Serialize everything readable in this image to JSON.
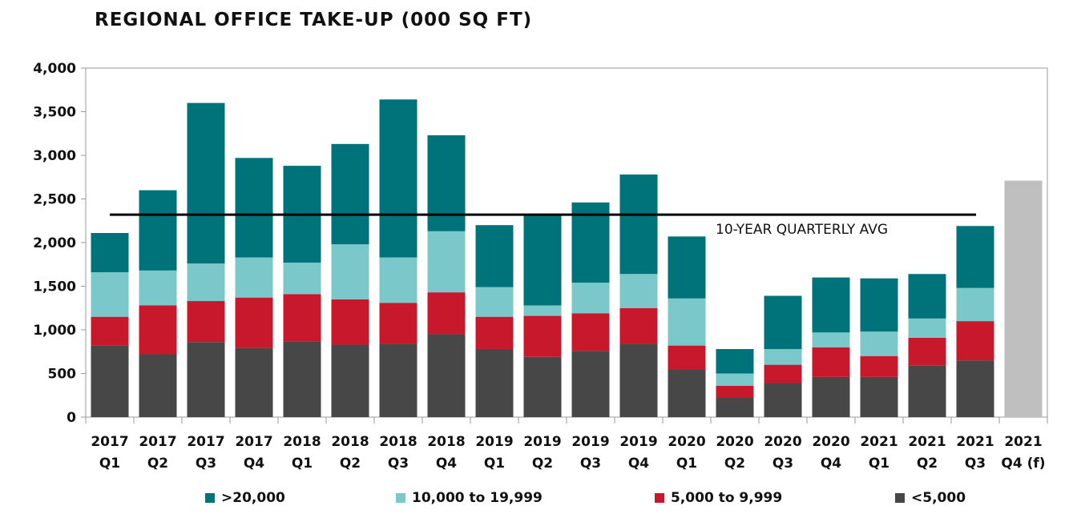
{
  "chart_data": {
    "type": "bar",
    "stacked": true,
    "title": "REGIONAL OFFICE TAKE-UP (000 SQ FT)",
    "xlabel": "",
    "ylabel": "",
    "ylim": [
      0,
      4000
    ],
    "yticks": [
      0,
      500,
      1000,
      1500,
      2000,
      2500,
      3000,
      3500,
      4000
    ],
    "ytick_labels": [
      "0",
      "500",
      "1,000",
      "1,500",
      "2,000",
      "2,500",
      "3,000",
      "3,500",
      "4,000"
    ],
    "categories": [
      [
        "2017",
        "Q1"
      ],
      [
        "2017",
        "Q2"
      ],
      [
        "2017",
        "Q3"
      ],
      [
        "2017",
        "Q4"
      ],
      [
        "2018",
        "Q1"
      ],
      [
        "2018",
        "Q2"
      ],
      [
        "2018",
        "Q3"
      ],
      [
        "2018",
        "Q4"
      ],
      [
        "2019",
        "Q1"
      ],
      [
        "2019",
        "Q2"
      ],
      [
        "2019",
        "Q3"
      ],
      [
        "2019",
        "Q4"
      ],
      [
        "2020",
        "Q1"
      ],
      [
        "2020",
        "Q2"
      ],
      [
        "2020",
        "Q3"
      ],
      [
        "2020",
        "Q4"
      ],
      [
        "2021",
        "Q1"
      ],
      [
        "2021",
        "Q2"
      ],
      [
        "2021",
        "Q3"
      ],
      [
        "2021",
        "Q4 (f)"
      ]
    ],
    "series": [
      {
        "name": "<5,000",
        "color": "#474747",
        "values": [
          820,
          720,
          860,
          790,
          870,
          830,
          840,
          950,
          780,
          690,
          760,
          840,
          550,
          220,
          390,
          460,
          460,
          590,
          650,
          null
        ]
      },
      {
        "name": "5,000 to 9,999",
        "color": "#c8182c",
        "values": [
          330,
          560,
          470,
          580,
          540,
          520,
          470,
          480,
          370,
          470,
          430,
          410,
          270,
          140,
          210,
          340,
          240,
          320,
          450,
          null
        ]
      },
      {
        "name": "10,000 to 19,999",
        "color": "#7ac8c9",
        "values": [
          510,
          400,
          430,
          460,
          360,
          630,
          520,
          700,
          340,
          120,
          350,
          390,
          540,
          140,
          180,
          170,
          280,
          220,
          380,
          null
        ]
      },
      {
        "name": ">20,000",
        "color": "#00737a",
        "values": [
          450,
          920,
          1840,
          1140,
          1110,
          1150,
          1810,
          1100,
          710,
          1030,
          920,
          1140,
          710,
          280,
          610,
          630,
          610,
          510,
          710,
          null
        ]
      }
    ],
    "forecast": {
      "category_index": 19,
      "value": 2710,
      "color": "#bfbfbf"
    },
    "reference_line": {
      "label": "10-YEAR QUARTERLY AVG",
      "value": 2320,
      "color": "#000000"
    },
    "legend": {
      "placement": "bottom",
      "items": [
        {
          "label": ">20,000",
          "color": "#00737a"
        },
        {
          "label": "10,000 to 19,999",
          "color": "#7ac8c9"
        },
        {
          "label": "5,000 to 9,999",
          "color": "#c8182c"
        },
        {
          "label": "<5,000",
          "color": "#474747"
        }
      ]
    }
  }
}
